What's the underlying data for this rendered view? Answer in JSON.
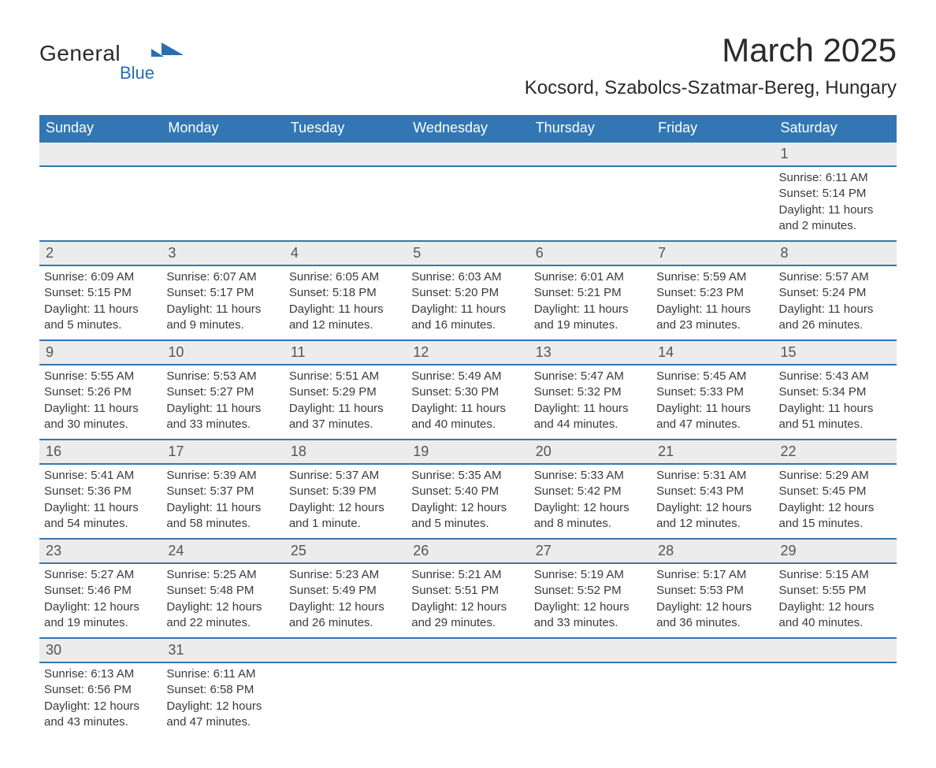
{
  "logo": {
    "general": "General",
    "blue": "Blue"
  },
  "header": {
    "title": "March 2025",
    "subtitle": "Kocsord, Szabolcs-Szatmar-Bereg, Hungary"
  },
  "calendar": {
    "dow_header_bg": "#3277b3",
    "dow_header_fg": "#ffffff",
    "daynum_bg": "#ececec",
    "row_border": "#3277b3",
    "days_of_week": [
      "Sunday",
      "Monday",
      "Tuesday",
      "Wednesday",
      "Thursday",
      "Friday",
      "Saturday"
    ],
    "weeks": [
      [
        null,
        null,
        null,
        null,
        null,
        null,
        {
          "n": "1",
          "sunrise": "Sunrise: 6:11 AM",
          "sunset": "Sunset: 5:14 PM",
          "day1": "Daylight: 11 hours",
          "day2": "and 2 minutes."
        }
      ],
      [
        {
          "n": "2",
          "sunrise": "Sunrise: 6:09 AM",
          "sunset": "Sunset: 5:15 PM",
          "day1": "Daylight: 11 hours",
          "day2": "and 5 minutes."
        },
        {
          "n": "3",
          "sunrise": "Sunrise: 6:07 AM",
          "sunset": "Sunset: 5:17 PM",
          "day1": "Daylight: 11 hours",
          "day2": "and 9 minutes."
        },
        {
          "n": "4",
          "sunrise": "Sunrise: 6:05 AM",
          "sunset": "Sunset: 5:18 PM",
          "day1": "Daylight: 11 hours",
          "day2": "and 12 minutes."
        },
        {
          "n": "5",
          "sunrise": "Sunrise: 6:03 AM",
          "sunset": "Sunset: 5:20 PM",
          "day1": "Daylight: 11 hours",
          "day2": "and 16 minutes."
        },
        {
          "n": "6",
          "sunrise": "Sunrise: 6:01 AM",
          "sunset": "Sunset: 5:21 PM",
          "day1": "Daylight: 11 hours",
          "day2": "and 19 minutes."
        },
        {
          "n": "7",
          "sunrise": "Sunrise: 5:59 AM",
          "sunset": "Sunset: 5:23 PM",
          "day1": "Daylight: 11 hours",
          "day2": "and 23 minutes."
        },
        {
          "n": "8",
          "sunrise": "Sunrise: 5:57 AM",
          "sunset": "Sunset: 5:24 PM",
          "day1": "Daylight: 11 hours",
          "day2": "and 26 minutes."
        }
      ],
      [
        {
          "n": "9",
          "sunrise": "Sunrise: 5:55 AM",
          "sunset": "Sunset: 5:26 PM",
          "day1": "Daylight: 11 hours",
          "day2": "and 30 minutes."
        },
        {
          "n": "10",
          "sunrise": "Sunrise: 5:53 AM",
          "sunset": "Sunset: 5:27 PM",
          "day1": "Daylight: 11 hours",
          "day2": "and 33 minutes."
        },
        {
          "n": "11",
          "sunrise": "Sunrise: 5:51 AM",
          "sunset": "Sunset: 5:29 PM",
          "day1": "Daylight: 11 hours",
          "day2": "and 37 minutes."
        },
        {
          "n": "12",
          "sunrise": "Sunrise: 5:49 AM",
          "sunset": "Sunset: 5:30 PM",
          "day1": "Daylight: 11 hours",
          "day2": "and 40 minutes."
        },
        {
          "n": "13",
          "sunrise": "Sunrise: 5:47 AM",
          "sunset": "Sunset: 5:32 PM",
          "day1": "Daylight: 11 hours",
          "day2": "and 44 minutes."
        },
        {
          "n": "14",
          "sunrise": "Sunrise: 5:45 AM",
          "sunset": "Sunset: 5:33 PM",
          "day1": "Daylight: 11 hours",
          "day2": "and 47 minutes."
        },
        {
          "n": "15",
          "sunrise": "Sunrise: 5:43 AM",
          "sunset": "Sunset: 5:34 PM",
          "day1": "Daylight: 11 hours",
          "day2": "and 51 minutes."
        }
      ],
      [
        {
          "n": "16",
          "sunrise": "Sunrise: 5:41 AM",
          "sunset": "Sunset: 5:36 PM",
          "day1": "Daylight: 11 hours",
          "day2": "and 54 minutes."
        },
        {
          "n": "17",
          "sunrise": "Sunrise: 5:39 AM",
          "sunset": "Sunset: 5:37 PM",
          "day1": "Daylight: 11 hours",
          "day2": "and 58 minutes."
        },
        {
          "n": "18",
          "sunrise": "Sunrise: 5:37 AM",
          "sunset": "Sunset: 5:39 PM",
          "day1": "Daylight: 12 hours",
          "day2": "and 1 minute."
        },
        {
          "n": "19",
          "sunrise": "Sunrise: 5:35 AM",
          "sunset": "Sunset: 5:40 PM",
          "day1": "Daylight: 12 hours",
          "day2": "and 5 minutes."
        },
        {
          "n": "20",
          "sunrise": "Sunrise: 5:33 AM",
          "sunset": "Sunset: 5:42 PM",
          "day1": "Daylight: 12 hours",
          "day2": "and 8 minutes."
        },
        {
          "n": "21",
          "sunrise": "Sunrise: 5:31 AM",
          "sunset": "Sunset: 5:43 PM",
          "day1": "Daylight: 12 hours",
          "day2": "and 12 minutes."
        },
        {
          "n": "22",
          "sunrise": "Sunrise: 5:29 AM",
          "sunset": "Sunset: 5:45 PM",
          "day1": "Daylight: 12 hours",
          "day2": "and 15 minutes."
        }
      ],
      [
        {
          "n": "23",
          "sunrise": "Sunrise: 5:27 AM",
          "sunset": "Sunset: 5:46 PM",
          "day1": "Daylight: 12 hours",
          "day2": "and 19 minutes."
        },
        {
          "n": "24",
          "sunrise": "Sunrise: 5:25 AM",
          "sunset": "Sunset: 5:48 PM",
          "day1": "Daylight: 12 hours",
          "day2": "and 22 minutes."
        },
        {
          "n": "25",
          "sunrise": "Sunrise: 5:23 AM",
          "sunset": "Sunset: 5:49 PM",
          "day1": "Daylight: 12 hours",
          "day2": "and 26 minutes."
        },
        {
          "n": "26",
          "sunrise": "Sunrise: 5:21 AM",
          "sunset": "Sunset: 5:51 PM",
          "day1": "Daylight: 12 hours",
          "day2": "and 29 minutes."
        },
        {
          "n": "27",
          "sunrise": "Sunrise: 5:19 AM",
          "sunset": "Sunset: 5:52 PM",
          "day1": "Daylight: 12 hours",
          "day2": "and 33 minutes."
        },
        {
          "n": "28",
          "sunrise": "Sunrise: 5:17 AM",
          "sunset": "Sunset: 5:53 PM",
          "day1": "Daylight: 12 hours",
          "day2": "and 36 minutes."
        },
        {
          "n": "29",
          "sunrise": "Sunrise: 5:15 AM",
          "sunset": "Sunset: 5:55 PM",
          "day1": "Daylight: 12 hours",
          "day2": "and 40 minutes."
        }
      ],
      [
        {
          "n": "30",
          "sunrise": "Sunrise: 6:13 AM",
          "sunset": "Sunset: 6:56 PM",
          "day1": "Daylight: 12 hours",
          "day2": "and 43 minutes."
        },
        {
          "n": "31",
          "sunrise": "Sunrise: 6:11 AM",
          "sunset": "Sunset: 6:58 PM",
          "day1": "Daylight: 12 hours",
          "day2": "and 47 minutes."
        },
        null,
        null,
        null,
        null,
        null
      ]
    ]
  }
}
